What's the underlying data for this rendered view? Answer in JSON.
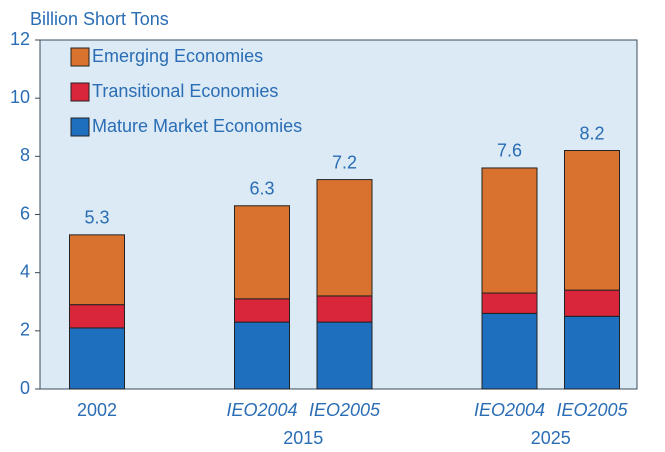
{
  "chart_data": {
    "type": "stacked_bar",
    "y_axis_label": "Billion Short Tons",
    "categories": [
      "2002",
      "IEO2004",
      "IEO2005",
      "IEO2004",
      "IEO2005"
    ],
    "category_italic": [
      false,
      true,
      true,
      true,
      true
    ],
    "group_labels": [
      "2015",
      "2025"
    ],
    "series": [
      {
        "name": "Mature Market Economies",
        "color": "#1f6fbf",
        "values": [
          2.1,
          2.3,
          2.3,
          2.6,
          2.5
        ]
      },
      {
        "name": "Transitional Economies",
        "color": "#d9263a",
        "values": [
          0.8,
          0.8,
          0.9,
          0.7,
          0.9
        ]
      },
      {
        "name": "Emerging Economies",
        "color": "#d8722e",
        "values": [
          2.4,
          3.2,
          4.0,
          4.3,
          4.8
        ]
      }
    ],
    "totals": [
      5.3,
      6.3,
      7.2,
      7.6,
      8.2
    ],
    "ylim": [
      0,
      12
    ],
    "yticks": [
      0,
      2,
      4,
      6,
      8,
      10,
      12
    ],
    "grid": false
  }
}
